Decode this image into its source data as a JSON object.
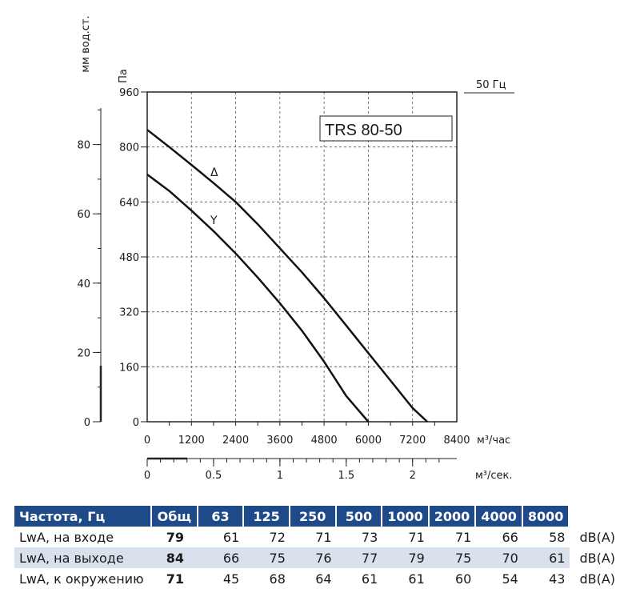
{
  "chart_data": {
    "type": "line",
    "title": "TRS 80-50",
    "frequency_label": "50 Гц",
    "x_unit_label": "м³/час",
    "x2_unit_label": "м³/сек.",
    "y_unit_label": "Па",
    "y2_unit_label": "мм вод.ст.",
    "xlim": [
      0,
      8400
    ],
    "ylim": [
      0,
      960
    ],
    "x_ticks": [
      "0",
      "1200",
      "2400",
      "3600",
      "4800",
      "6000",
      "7200",
      "8400"
    ],
    "y_ticks": [
      "0",
      "160",
      "320",
      "480",
      "640",
      "800",
      "960"
    ],
    "x2_ticks": [
      "0",
      "0.5",
      "1",
      "1.5",
      "2"
    ],
    "y2_ticks": [
      "0",
      "20",
      "40",
      "60",
      "80"
    ],
    "grid": true,
    "series": [
      {
        "name": "Δ",
        "x": [
          0,
          600,
          1200,
          1800,
          2400,
          3000,
          3600,
          4200,
          4800,
          5400,
          6000,
          6600,
          7200,
          7600
        ],
        "y": [
          850,
          800,
          748,
          695,
          640,
          575,
          505,
          435,
          360,
          280,
          200,
          120,
          40,
          0
        ]
      },
      {
        "name": "Y",
        "x": [
          0,
          600,
          1200,
          1800,
          2400,
          3000,
          3600,
          4200,
          4800,
          5400,
          6000
        ],
        "y": [
          720,
          672,
          615,
          555,
          490,
          420,
          345,
          265,
          175,
          75,
          0
        ]
      }
    ]
  },
  "table": {
    "headers": [
      "Частота, Гц",
      "Общ",
      "63",
      "125",
      "250",
      "500",
      "1000",
      "2000",
      "4000",
      "8000"
    ],
    "rows": [
      {
        "label": "LwA, на входе",
        "total": "79",
        "values": [
          "61",
          "72",
          "71",
          "73",
          "71",
          "71",
          "66",
          "58"
        ],
        "unit": "dB(A)"
      },
      {
        "label": "LwA, на выходе",
        "total": "84",
        "values": [
          "66",
          "75",
          "76",
          "77",
          "79",
          "75",
          "70",
          "61"
        ],
        "unit": "dB(A)"
      },
      {
        "label": "LwA, к окружению",
        "total": "71",
        "values": [
          "45",
          "68",
          "64",
          "61",
          "61",
          "60",
          "54",
          "43"
        ],
        "unit": "dB(A)"
      }
    ]
  }
}
